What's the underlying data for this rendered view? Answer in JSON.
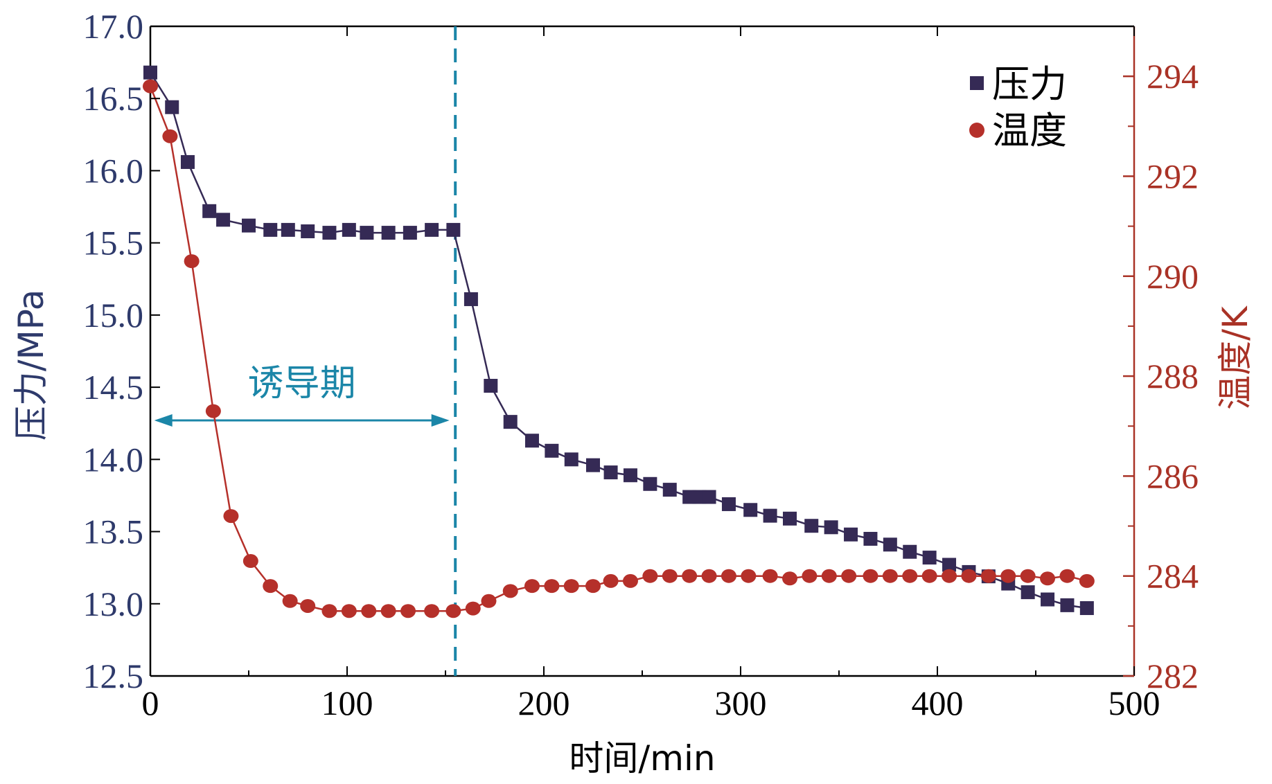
{
  "chart_data": {
    "type": "line",
    "colors": {
      "pressure": "#352A55",
      "temperature": "#B5302A",
      "left_axis_text": "#2E3A6B",
      "right_axis": "#A93226",
      "marker_line": "#1B86A8",
      "frame": "#000000"
    },
    "xlabel": "时间/min",
    "ylabel_left": "压力/MPa",
    "ylabel_right": "温度/K",
    "xlim": [
      0,
      500
    ],
    "ylim_left": [
      12.5,
      17.0
    ],
    "ylim_right": [
      282,
      295
    ],
    "x_ticks": [
      "0",
      "100",
      "200",
      "300",
      "400",
      "500"
    ],
    "y_left_ticks": [
      "12.5",
      "13.0",
      "13.5",
      "14.0",
      "14.5",
      "15.0",
      "15.5",
      "16.0",
      "16.5",
      "17.0"
    ],
    "y_right_ticks": [
      "282",
      "284",
      "286",
      "288",
      "290",
      "292",
      "294"
    ],
    "legend": [
      "压力",
      "温度"
    ],
    "annotation": {
      "text": "诱导期",
      "x_start": 2,
      "x_end": 152
    },
    "vline_x": 155,
    "series": [
      {
        "name": "压力",
        "axis": "left",
        "marker": "square",
        "x": [
          0,
          11,
          19,
          30,
          37,
          50,
          61,
          70,
          80,
          91,
          101,
          110,
          121,
          132,
          143,
          154,
          163,
          173,
          183,
          194,
          204,
          214,
          225,
          234,
          244,
          254,
          264,
          274,
          279,
          284,
          294,
          305,
          315,
          325,
          336,
          346,
          356,
          366,
          376,
          386,
          396,
          406,
          416,
          426,
          436,
          446,
          456,
          466,
          476
        ],
        "values": [
          16.68,
          16.44,
          16.06,
          15.72,
          15.66,
          15.62,
          15.59,
          15.59,
          15.58,
          15.57,
          15.59,
          15.57,
          15.57,
          15.57,
          15.59,
          15.59,
          15.11,
          14.51,
          14.26,
          14.13,
          14.06,
          14.0,
          13.96,
          13.91,
          13.89,
          13.83,
          13.79,
          13.74,
          13.74,
          13.74,
          13.69,
          13.65,
          13.61,
          13.59,
          13.54,
          13.53,
          13.48,
          13.45,
          13.41,
          13.36,
          13.32,
          13.27,
          13.22,
          13.19,
          13.14,
          13.08,
          13.03,
          12.99,
          12.97
        ]
      },
      {
        "name": "温度",
        "axis": "right",
        "marker": "circle",
        "x": [
          0,
          10,
          21,
          32,
          41,
          51,
          61,
          71,
          80,
          91,
          101,
          111,
          121,
          131,
          143,
          154,
          164,
          172,
          183,
          194,
          204,
          214,
          225,
          234,
          244,
          254,
          264,
          274,
          284,
          294,
          304,
          315,
          325,
          335,
          345,
          355,
          366,
          376,
          386,
          396,
          406,
          416,
          426,
          436,
          446,
          456,
          466,
          476
        ],
        "values": [
          293.8,
          292.8,
          290.3,
          287.3,
          285.2,
          284.3,
          283.8,
          283.5,
          283.4,
          283.3,
          283.3,
          283.3,
          283.3,
          283.3,
          283.3,
          283.3,
          283.35,
          283.5,
          283.7,
          283.8,
          283.8,
          283.8,
          283.8,
          283.9,
          283.9,
          284.0,
          284.0,
          284.0,
          284.0,
          284.0,
          284.0,
          284.0,
          283.95,
          284.0,
          284.0,
          284.0,
          284.0,
          284.0,
          284.0,
          284.0,
          284.0,
          284.0,
          284.0,
          284.0,
          284.0,
          283.95,
          284.0,
          283.9
        ]
      }
    ]
  }
}
